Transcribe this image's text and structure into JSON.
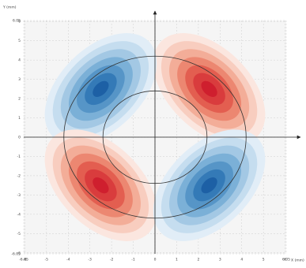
{
  "chart_data": {
    "type": "contour",
    "xlabel": "X (mm)",
    "ylabel": "Y (mm)",
    "xlim": [
      -6.05,
      6.05
    ],
    "ylim": [
      -6.05,
      6.05
    ],
    "xticks": [
      -6.05,
      -6,
      -5,
      -4,
      -3,
      -2,
      -1,
      0,
      1,
      2,
      3,
      4,
      5,
      6,
      6.05
    ],
    "yticks": [
      -6.05,
      -6,
      -5,
      -4,
      -3,
      -2,
      -1,
      0,
      1,
      2,
      3,
      4,
      5,
      6,
      6.05
    ],
    "grid": true,
    "circles": [
      4.2,
      2.4
    ],
    "lobes": [
      {
        "cx": 2.5,
        "cy": 2.5,
        "rx": 3.3,
        "ry": 2.0,
        "angle": 45,
        "shades": "red"
      },
      {
        "cx": -2.5,
        "cy": 2.5,
        "rx": 3.3,
        "ry": 2.0,
        "angle": -45,
        "shades": "blue"
      },
      {
        "cx": -2.5,
        "cy": -2.5,
        "rx": 3.3,
        "ry": 2.0,
        "angle": 45,
        "shades": "red"
      },
      {
        "cx": 2.5,
        "cy": -2.5,
        "rx": 3.3,
        "ry": 2.0,
        "angle": -45,
        "shades": "blue"
      }
    ],
    "palettes": {
      "red": [
        "#fbe6df",
        "#f8cdbf",
        "#f3ad98",
        "#ec8771",
        "#e35e50",
        "#d93c3d",
        "#cf1f2e"
      ],
      "blue": [
        "#e1edf7",
        "#c5ddef",
        "#a3c8e4",
        "#7bb0d7",
        "#5695c7",
        "#347ab7",
        "#1d60a5"
      ]
    }
  }
}
